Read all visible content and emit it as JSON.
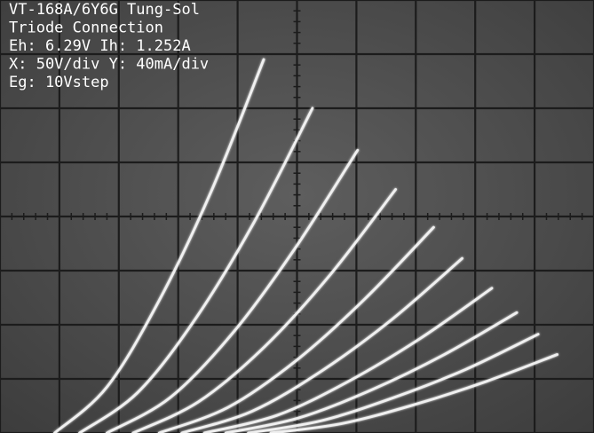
{
  "chart_data": {
    "type": "line",
    "annotations": [
      "VT-168A/6Y6G Tung-Sol",
      "Triode Connection",
      "Eh: 6.29V Ih: 1.252A",
      "X: 50V/div Y: 40mA/div",
      "Eg: 10Vstep"
    ],
    "xlim": [
      0,
      500
    ],
    "ylim": [
      0,
      320
    ],
    "xticks": [
      0,
      50,
      100,
      150,
      200,
      250,
      300,
      350,
      400,
      450,
      500
    ],
    "yticks": [
      0,
      40,
      80,
      120,
      160,
      200,
      240,
      280,
      320
    ],
    "grid": true,
    "color": "#f4f4f4",
    "series": [
      {
        "x": [
          46,
          90,
          134,
          178,
          222
        ],
        "values": [
          0,
          34,
          98,
          179,
          276
        ]
      },
      {
        "x": [
          67,
          116,
          165,
          214,
          263
        ],
        "values": [
          0,
          30,
          85,
          156,
          240
        ]
      },
      {
        "x": [
          90,
          143,
          196,
          248,
          301
        ],
        "values": [
          0,
          26,
          74,
          136,
          209
        ]
      },
      {
        "x": [
          112,
          167,
          223,
          278,
          333
        ],
        "values": [
          0,
          23,
          64,
          117,
          180
        ]
      },
      {
        "x": [
          134,
          192,
          250,
          307,
          365
        ],
        "values": [
          0,
          19,
          54,
          99,
          152
        ]
      },
      {
        "x": [
          153,
          212,
          271,
          330,
          389
        ],
        "values": [
          0,
          16,
          46,
          84,
          129
        ]
      },
      {
        "x": [
          172,
          233,
          293,
          354,
          414
        ],
        "values": [
          0,
          13,
          38,
          70,
          107
        ]
      },
      {
        "x": [
          190,
          251,
          313,
          374,
          435
        ],
        "values": [
          0,
          11,
          32,
          58,
          89
        ]
      },
      {
        "x": [
          209,
          270,
          331,
          392,
          453
        ],
        "values": [
          0,
          9,
          26,
          47,
          73
        ]
      },
      {
        "x": [
          228,
          288,
          349,
          409,
          469
        ],
        "values": [
          0,
          7,
          21,
          38,
          58
        ]
      }
    ]
  }
}
